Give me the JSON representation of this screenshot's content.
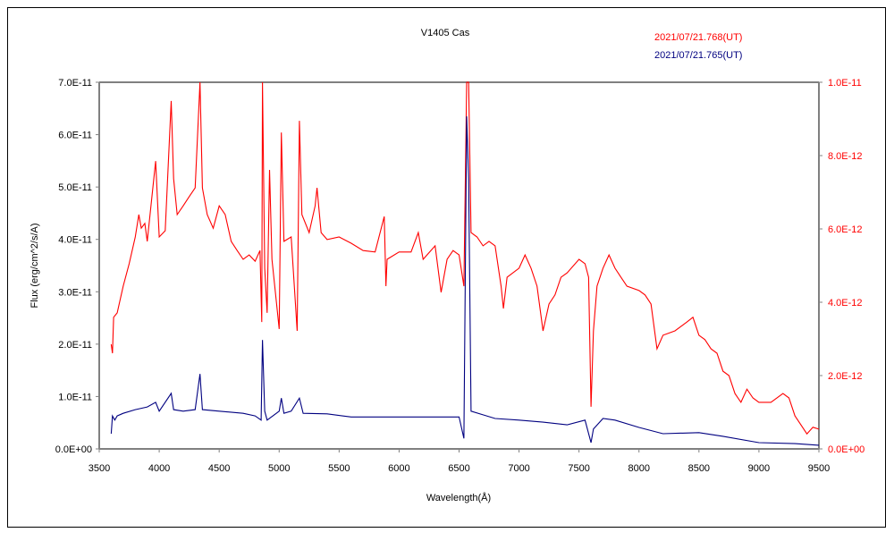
{
  "chart_data": {
    "type": "line",
    "title": "V1405 Cas",
    "xlabel": "Wavelength(Å)",
    "ylabel": "Flux (erg/cm^2/s/A)",
    "xlim": [
      3500,
      9500
    ],
    "ylim_left": [
      0,
      7e-11
    ],
    "ylim_right": [
      0,
      1e-11
    ],
    "x_ticks": [
      "3500",
      "4000",
      "4500",
      "5000",
      "5500",
      "6000",
      "6500",
      "7000",
      "7500",
      "8000",
      "8500",
      "9000",
      "9500"
    ],
    "y_left_ticks": [
      "0.0E+00",
      "1.0E-11",
      "2.0E-11",
      "3.0E-11",
      "4.0E-11",
      "5.0E-11",
      "6.0E-11",
      "7.0E-11"
    ],
    "y_right_ticks": [
      "0.0E+00",
      "2.0E-12",
      "4.0E-12",
      "6.0E-12",
      "8.0E-12",
      "1.0E-11"
    ],
    "grid": false,
    "legend_placement": "top-right",
    "series": [
      {
        "name": "2021/07/21.768(UT)",
        "color": "#ff0000",
        "axis": "right",
        "unit_scale": 1e-12,
        "x": [
          3600,
          3610,
          3620,
          3650,
          3700,
          3750,
          3800,
          3830,
          3850,
          3880,
          3900,
          3970,
          4000,
          4050,
          4100,
          4120,
          4150,
          4200,
          4250,
          4300,
          4340,
          4360,
          4400,
          4450,
          4500,
          4550,
          4600,
          4650,
          4700,
          4750,
          4800,
          4840,
          4855,
          4861,
          4880,
          4900,
          4920,
          4940,
          5000,
          5018,
          5040,
          5100,
          5150,
          5169,
          5190,
          5250,
          5300,
          5316,
          5350,
          5400,
          5500,
          5600,
          5700,
          5800,
          5876,
          5890,
          5900,
          6000,
          6100,
          6160,
          6200,
          6300,
          6350,
          6400,
          6450,
          6500,
          6540,
          6563,
          6580,
          6600,
          6650,
          6700,
          6750,
          6800,
          6850,
          6870,
          6900,
          7000,
          7050,
          7100,
          7150,
          7200,
          7250,
          7300,
          7350,
          7400,
          7500,
          7550,
          7580,
          7600,
          7620,
          7650,
          7700,
          7750,
          7800,
          7850,
          7900,
          8000,
          8050,
          8100,
          8150,
          8200,
          8300,
          8400,
          8450,
          8500,
          8550,
          8600,
          8650,
          8700,
          8750,
          8800,
          8850,
          8900,
          8950,
          9000,
          9100,
          9200,
          9250,
          9300,
          9400,
          9450,
          9500
        ],
        "y": [
          2.85,
          2.61,
          3.59,
          3.71,
          4.44,
          5.05,
          5.78,
          6.39,
          6.02,
          6.15,
          5.66,
          7.85,
          5.78,
          5.95,
          9.49,
          7.37,
          6.39,
          6.63,
          6.88,
          7.12,
          10,
          7.12,
          6.39,
          6.02,
          6.63,
          6.39,
          5.66,
          5.41,
          5.17,
          5.29,
          5.12,
          5.41,
          3.46,
          10,
          4.93,
          3.71,
          7.61,
          5.17,
          3.27,
          8.63,
          5.66,
          5.78,
          3.22,
          8.95,
          6.39,
          5.9,
          6.63,
          7.12,
          5.9,
          5.71,
          5.78,
          5.61,
          5.41,
          5.37,
          6.34,
          4.44,
          5.17,
          5.37,
          5.37,
          5.9,
          5.17,
          5.54,
          4.27,
          5.17,
          5.41,
          5.29,
          4.44,
          10,
          10,
          5.9,
          5.78,
          5.54,
          5.66,
          5.54,
          4.44,
          3.83,
          4.68,
          4.93,
          5.29,
          4.93,
          4.44,
          3.22,
          3.95,
          4.2,
          4.68,
          4.8,
          5.17,
          5.05,
          4.68,
          1.15,
          3.22,
          4.44,
          4.93,
          5.29,
          4.93,
          4.68,
          4.44,
          4.32,
          4.2,
          3.95,
          2.73,
          3.1,
          3.22,
          3.46,
          3.59,
          3.1,
          2.98,
          2.73,
          2.61,
          2.12,
          2.0,
          1.51,
          1.27,
          1.63,
          1.39,
          1.27,
          1.27,
          1.51,
          1.39,
          0.9,
          0.41,
          0.59,
          0.54
        ]
      },
      {
        "name": "2021/07/21.765(UT)",
        "color": "#000080",
        "axis": "left",
        "unit_scale": 1e-11,
        "x": [
          3600,
          3610,
          3630,
          3650,
          3700,
          3800,
          3900,
          3970,
          4000,
          4100,
          4120,
          4200,
          4300,
          4340,
          4360,
          4500,
          4700,
          4800,
          4850,
          4861,
          4880,
          4900,
          5000,
          5018,
          5040,
          5100,
          5169,
          5200,
          5400,
          5600,
          6000,
          6500,
          6540,
          6563,
          6580,
          6600,
          6700,
          6800,
          7000,
          7200,
          7400,
          7550,
          7600,
          7620,
          7700,
          7800,
          8000,
          8200,
          8500,
          8700,
          9000,
          9300,
          9500
        ],
        "y": [
          0.29,
          0.63,
          0.55,
          0.63,
          0.68,
          0.75,
          0.8,
          0.89,
          0.72,
          1.06,
          0.75,
          0.72,
          0.75,
          1.43,
          0.75,
          0.72,
          0.68,
          0.63,
          0.55,
          2.08,
          0.72,
          0.55,
          0.72,
          0.97,
          0.68,
          0.72,
          0.97,
          0.68,
          0.67,
          0.61,
          0.61,
          0.61,
          0.2,
          6.35,
          5.15,
          0.72,
          0.65,
          0.58,
          0.55,
          0.51,
          0.46,
          0.55,
          0.12,
          0.38,
          0.58,
          0.55,
          0.41,
          0.29,
          0.31,
          0.24,
          0.12,
          0.1,
          0.07
        ]
      }
    ]
  }
}
